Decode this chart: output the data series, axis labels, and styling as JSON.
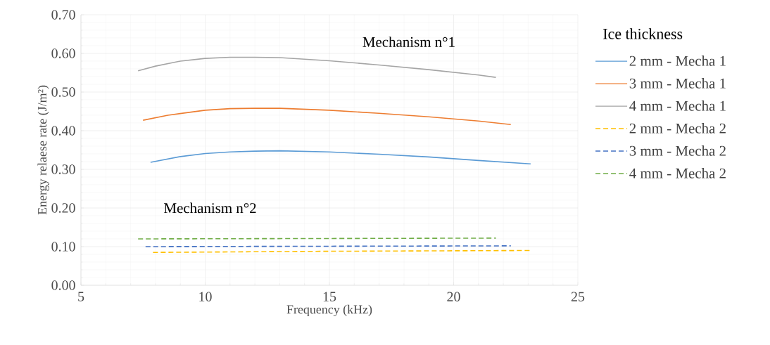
{
  "chart_data": {
    "type": "line",
    "xlabel": "Frequency (kHz)",
    "ylabel": "Energy relaese rate (J/m²)",
    "legend_title": "Ice thickness",
    "xlim": [
      5,
      25
    ],
    "ylim": [
      0,
      0.7
    ],
    "xticks": [
      5,
      10,
      15,
      20,
      25
    ],
    "yticks": [
      {
        "value": 0,
        "label": "0.00"
      },
      {
        "value": 0.1,
        "label": "0.10"
      },
      {
        "value": 0.2,
        "label": "0.20"
      },
      {
        "value": 0.3,
        "label": "0.30"
      },
      {
        "value": 0.4,
        "label": "0.40"
      },
      {
        "value": 0.5,
        "label": "0.50"
      },
      {
        "value": 0.6,
        "label": "0.60"
      },
      {
        "value": 0.7,
        "label": "0.70"
      }
    ],
    "grid": true,
    "legend": "right",
    "annotations": [
      "Mechanism n°1",
      "Mechanism n°2"
    ],
    "series": [
      {
        "name": "2 mm - Mecha 1",
        "color": "#5b9bd5",
        "line_style": "solid",
        "x": [
          7.8,
          9,
          10,
          11,
          12,
          13,
          15,
          17,
          19,
          21,
          23.1
        ],
        "values": [
          0.318,
          0.333,
          0.341,
          0.345,
          0.347,
          0.348,
          0.345,
          0.339,
          0.332,
          0.323,
          0.314
        ]
      },
      {
        "name": "3 mm - Mecha 1",
        "color": "#ed7d31",
        "line_style": "solid",
        "x": [
          7.5,
          8.5,
          10,
          11,
          12,
          13,
          15,
          17,
          19,
          21,
          22.3
        ],
        "values": [
          0.427,
          0.44,
          0.453,
          0.457,
          0.458,
          0.458,
          0.453,
          0.445,
          0.436,
          0.425,
          0.416
        ]
      },
      {
        "name": "4 mm - Mecha 1",
        "color": "#a5a5a5",
        "line_style": "solid",
        "x": [
          7.3,
          8,
          9,
          10,
          11,
          12,
          13,
          15,
          17,
          19,
          21,
          21.7
        ],
        "values": [
          0.555,
          0.567,
          0.58,
          0.587,
          0.59,
          0.59,
          0.589,
          0.581,
          0.57,
          0.558,
          0.544,
          0.538
        ]
      },
      {
        "name": "2 mm - Mecha 2",
        "color": "#ffc000",
        "line_style": "dashed",
        "x": [
          7.9,
          15,
          23.1
        ],
        "values": [
          0.085,
          0.088,
          0.09
        ]
      },
      {
        "name": "3 mm - Mecha 2",
        "color": "#4472c4",
        "line_style": "dashed",
        "x": [
          7.6,
          15,
          22.3
        ],
        "values": [
          0.1,
          0.101,
          0.102
        ]
      },
      {
        "name": "4 mm - Mecha 2",
        "color": "#70ad47",
        "line_style": "dashed",
        "x": [
          7.3,
          15,
          21.7
        ],
        "values": [
          0.12,
          0.121,
          0.122
        ]
      }
    ]
  }
}
